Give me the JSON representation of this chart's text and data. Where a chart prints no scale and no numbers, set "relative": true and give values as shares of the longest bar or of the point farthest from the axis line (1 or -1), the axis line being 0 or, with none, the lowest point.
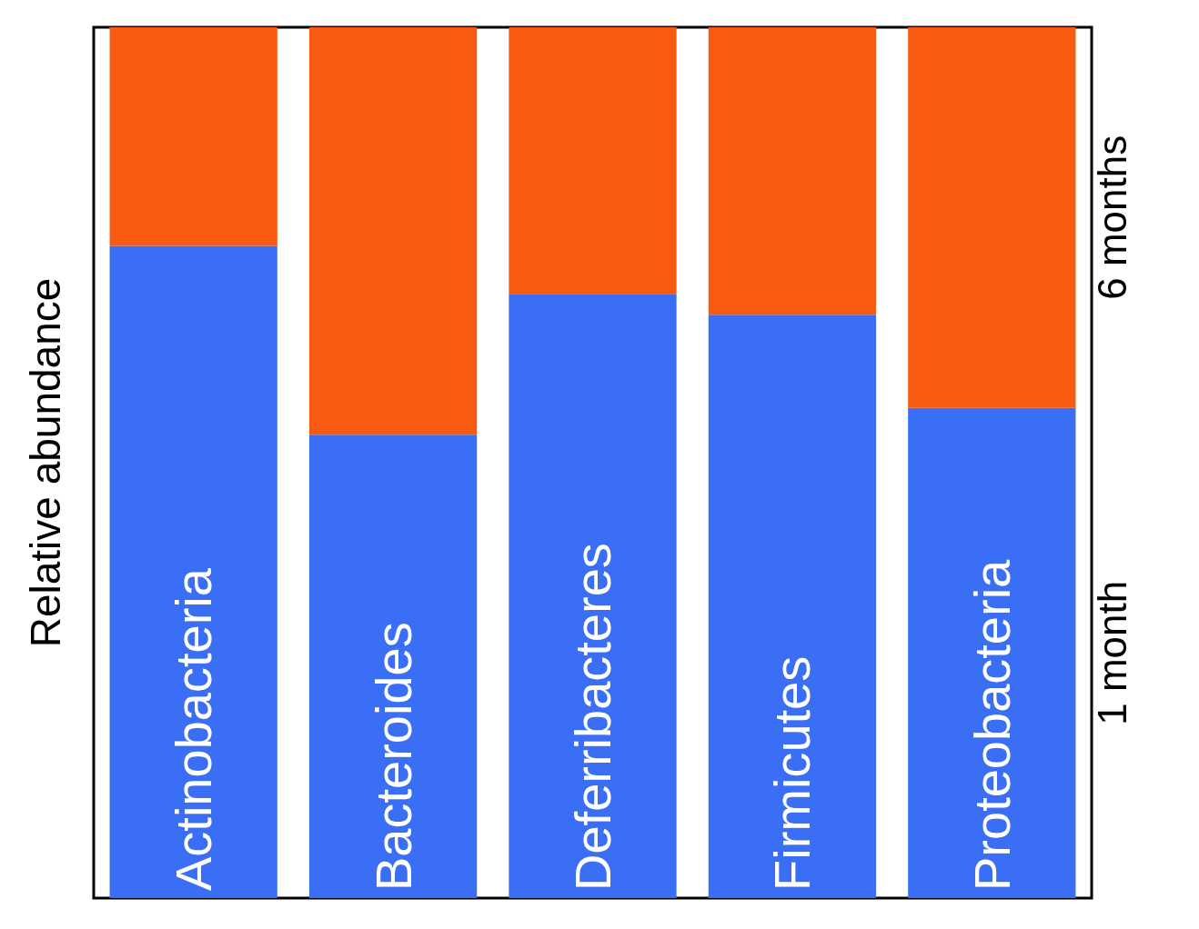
{
  "chart_data": {
    "type": "bar",
    "stacked": true,
    "relative": true,
    "ylabel": "Relative abundance",
    "categories": [
      "Actinobacteria",
      "Bacteroides",
      "Deferribacteres",
      "Firmicutes",
      "Proteobacteria"
    ],
    "series": [
      {
        "name": "1 month",
        "color": "#3a6ff5",
        "values": [
          0.749,
          0.532,
          0.694,
          0.67,
          0.563
        ]
      },
      {
        "name": "6 months",
        "color": "#f75a10",
        "values": [
          0.251,
          0.468,
          0.306,
          0.33,
          0.437
        ]
      }
    ],
    "legend": false,
    "grid": false
  }
}
